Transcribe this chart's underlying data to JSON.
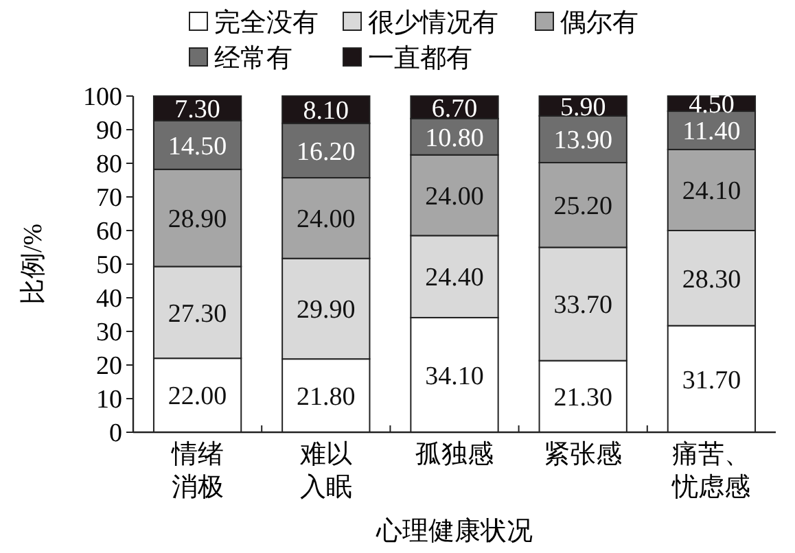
{
  "chart_data": {
    "type": "bar",
    "stacked": true,
    "xlabel": "心理健康状况",
    "ylabel": "比例/%",
    "categories": [
      "情绪消极",
      "难以入眠",
      "孤独感",
      "紧张感",
      "痛苦、忧虑感"
    ],
    "ylim": [
      0,
      100
    ],
    "yticks": [
      0,
      10,
      20,
      30,
      40,
      50,
      60,
      70,
      80,
      90,
      100
    ],
    "legend": "top",
    "grid": false,
    "series": [
      {
        "name": "完全没有",
        "color": "#ffffff",
        "values": [
          22.0,
          21.8,
          34.1,
          21.3,
          31.7
        ],
        "value_labels": [
          "22.00",
          "21.80",
          "34.10",
          "21.30",
          "31.70"
        ]
      },
      {
        "name": "很少情况有",
        "color": "#d9d9d9",
        "values": [
          27.3,
          29.9,
          24.4,
          33.7,
          28.3
        ],
        "value_labels": [
          "27.30",
          "29.90",
          "24.40",
          "33.70",
          "28.30"
        ]
      },
      {
        "name": "偶尔有",
        "color": "#a6a6a6",
        "values": [
          28.9,
          24.0,
          24.0,
          25.2,
          24.1
        ],
        "value_labels": [
          "28.90",
          "24.00",
          "24.00",
          "25.20",
          "24.10"
        ]
      },
      {
        "name": "经常有",
        "color": "#6e6e6e",
        "values": [
          14.5,
          16.2,
          10.8,
          13.9,
          11.4
        ],
        "value_labels": [
          "14.50",
          "16.20",
          "10.80",
          "13.90",
          "11.40"
        ]
      },
      {
        "name": "一直都有",
        "color": "#1c1416",
        "values": [
          7.3,
          8.1,
          6.7,
          5.9,
          4.5
        ],
        "value_labels": [
          "7.30",
          "8.10",
          "6.70",
          "5.90",
          "4.50"
        ]
      }
    ]
  }
}
